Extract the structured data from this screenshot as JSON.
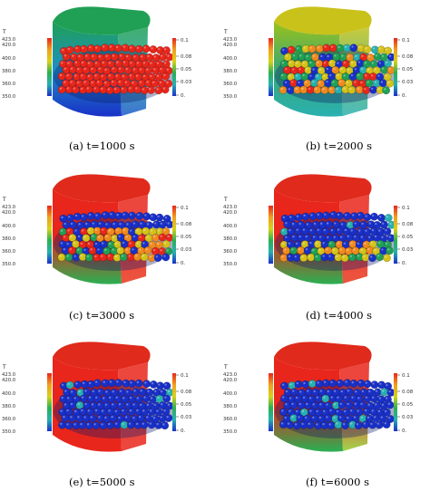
{
  "figure": {
    "panels": [
      {
        "caption": "(a) t=1000 s",
        "temp_state": "fresh",
        "moisture_state": "wet"
      },
      {
        "caption": "(b) t=2000 s",
        "temp_state": "warming",
        "moisture_state": "mixed"
      },
      {
        "caption": "(c) t=3000 s",
        "temp_state": "hot",
        "moisture_state": "drying"
      },
      {
        "caption": "(d) t=4000 s",
        "temp_state": "hot",
        "moisture_state": "mostly-dry"
      },
      {
        "caption": "(e) t=5000 s",
        "temp_state": "hot",
        "moisture_state": "dry"
      },
      {
        "caption": "(f) t=6000 s",
        "temp_state": "hot",
        "moisture_state": "dry"
      }
    ],
    "temperature_legend": {
      "title": "T",
      "ticks": [
        "423.0",
        "420.0",
        "400.0",
        "380.0",
        "360.0",
        "350.0"
      ]
    },
    "moisture_legend": {
      "ticks": [
        "0.1",
        "0.08",
        "0.05",
        "0.03",
        "0."
      ]
    },
    "colors": {
      "red": "#e8261b",
      "orange": "#f08a1e",
      "yellow": "#d4c21a",
      "green": "#1fa055",
      "cyan": "#27b0b0",
      "blue": "#1930c8"
    }
  }
}
